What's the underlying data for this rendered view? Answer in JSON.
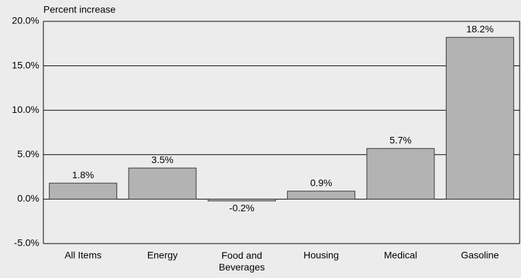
{
  "chart_data": {
    "type": "bar",
    "y_axis_label": "Percent increase",
    "categories": [
      "All Items",
      "Energy",
      "Food and Beverages",
      "Housing",
      "Medical",
      "Gasoline"
    ],
    "values": [
      1.8,
      3.5,
      -0.2,
      0.9,
      5.7,
      18.2
    ],
    "value_labels": [
      "1.8%",
      "3.5%",
      "-0.2%",
      "0.9%",
      "5.7%",
      "18.2%"
    ],
    "color": "#b3b3b3",
    "ylim": [
      -5,
      20
    ],
    "yticks": [
      {
        "value": -5,
        "label": "-5.0%"
      },
      {
        "value": 0,
        "label": "0.0%"
      },
      {
        "value": 5,
        "label": "5.0%"
      },
      {
        "value": 10,
        "label": "10.0%"
      },
      {
        "value": 15,
        "label": "15.0%"
      },
      {
        "value": 20,
        "label": "20.0%"
      }
    ],
    "grid": true
  }
}
